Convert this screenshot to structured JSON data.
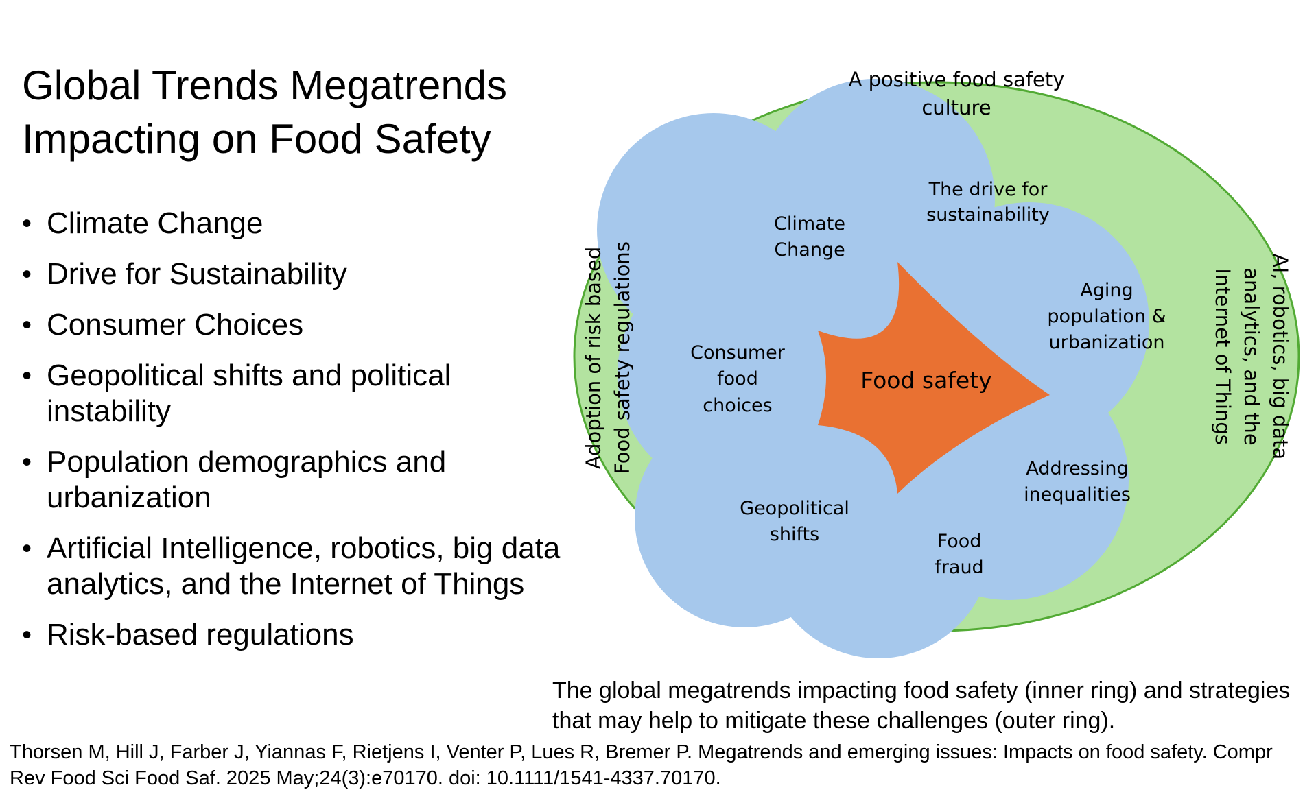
{
  "slide": {
    "title_lines": [
      "Global Trends Megatrends",
      "Impacting on Food Safety"
    ],
    "bullet_glyph": "•",
    "bullets": [
      [
        "Climate Change"
      ],
      [
        "Drive for Sustainability"
      ],
      [
        "Consumer Choices"
      ],
      [
        "Geopolitical shifts and political",
        "instability"
      ],
      [
        "Population demographics and",
        "urbanization"
      ],
      [
        "Artificial Intelligence, robotics, big data",
        "analytics, and the Internet of Things"
      ],
      [
        "Risk-based regulations"
      ]
    ],
    "caption": "The global megatrends impacting food safety (inner ring) and strategies that may help to mitigate these challenges (outer ring).",
    "citation": "Thorsen M, Hill J, Farber J, Yiannas F, Rietjens I, Venter P, Lues R, Bremer P. Megatrends and emerging issues: Impacts on food safety. Compr Rev Food Sci Food Saf. 2025 May;24(3):e70170. doi: 10.1111/1541-4337.70170."
  },
  "diagram": {
    "center_label": "Food safety",
    "inner_ring": {
      "climate_change": [
        "Climate",
        "Change"
      ],
      "sustainability": [
        "The drive for",
        "sustainability"
      ],
      "aging": [
        "Aging",
        "population &",
        "urbanization"
      ],
      "inequalities": [
        "Addressing",
        "inequalities"
      ],
      "food_fraud": [
        "Food",
        "fraud"
      ],
      "geopolitical": [
        "Geopolitical",
        "shifts"
      ],
      "consumer": [
        "Consumer",
        "food",
        "choices"
      ]
    },
    "outer_ring": {
      "top": [
        "A positive food safety",
        "culture"
      ],
      "left": [
        "Adoption of risk based",
        "Food safety regulations"
      ],
      "right": [
        "AI, robotics, big data",
        "analytics, and the",
        "Internet of Things"
      ]
    },
    "colors": {
      "outer_fill": "#b3e3a0",
      "outer_stroke": "#52aa34",
      "inner_fill": "#a6c8ec",
      "center_fill": "#e97132"
    }
  }
}
